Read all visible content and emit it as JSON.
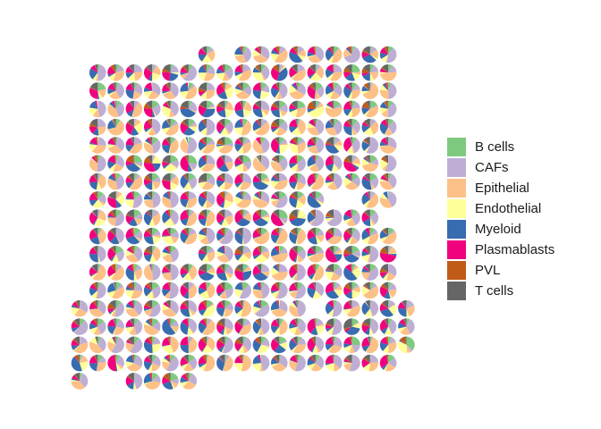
{
  "chart_data": {
    "type": "scatterpie",
    "title": "",
    "xlabel": "",
    "ylabel": "",
    "grid": false,
    "legend_position": "right",
    "categories": [
      "B cells",
      "CAFs",
      "Epithelial",
      "Endothelial",
      "Myeloid",
      "Plasmablasts",
      "PVL",
      "T cells"
    ],
    "colors": [
      "#7fc97f",
      "#beaed4",
      "#fdc086",
      "#ffff99",
      "#386cb0",
      "#f0027f",
      "#bf5b17",
      "#666666"
    ],
    "grid_columns": 19,
    "grid_rows": 19,
    "rows": [
      {
        "row": 0,
        "columns": [
          7,
          9,
          10,
          11,
          12,
          13,
          14,
          15,
          16,
          17
        ]
      },
      {
        "row": 1,
        "columns": [
          1,
          2,
          3,
          4,
          5,
          6,
          7,
          8,
          9,
          10,
          11,
          12,
          13,
          14,
          15,
          16,
          17
        ]
      },
      {
        "row": 2,
        "columns": [
          1,
          2,
          3,
          4,
          5,
          6,
          7,
          8,
          9,
          10,
          11,
          12,
          13,
          14,
          15,
          16,
          17
        ]
      },
      {
        "row": 3,
        "columns": [
          1,
          2,
          3,
          4,
          5,
          6,
          7,
          8,
          9,
          10,
          11,
          12,
          13,
          14,
          15,
          16,
          17
        ]
      },
      {
        "row": 4,
        "columns": [
          1,
          2,
          3,
          4,
          5,
          6,
          7,
          8,
          9,
          10,
          11,
          12,
          13,
          14,
          15,
          16,
          17
        ]
      },
      {
        "row": 5,
        "columns": [
          1,
          2,
          3,
          4,
          5,
          6,
          7,
          8,
          9,
          10,
          11,
          12,
          13,
          14,
          15,
          16,
          17
        ]
      },
      {
        "row": 6,
        "columns": [
          1,
          2,
          3,
          4,
          5,
          6,
          7,
          8,
          9,
          10,
          11,
          12,
          13,
          14,
          15,
          16,
          17
        ]
      },
      {
        "row": 7,
        "columns": [
          1,
          2,
          3,
          4,
          5,
          6,
          7,
          8,
          9,
          10,
          11,
          12,
          13,
          14,
          15,
          16,
          17
        ]
      },
      {
        "row": 8,
        "columns": [
          1,
          2,
          3,
          4,
          5,
          6,
          7,
          8,
          9,
          10,
          11,
          12,
          13,
          16,
          17
        ]
      },
      {
        "row": 9,
        "columns": [
          1,
          2,
          3,
          4,
          5,
          6,
          7,
          8,
          9,
          10,
          11,
          12,
          13,
          14,
          15,
          16
        ]
      },
      {
        "row": 10,
        "columns": [
          1,
          2,
          3,
          4,
          5,
          6,
          7,
          8,
          9,
          10,
          11,
          12,
          13,
          14,
          15,
          16,
          17
        ]
      },
      {
        "row": 11,
        "columns": [
          1,
          2,
          3,
          4,
          5,
          7,
          8,
          9,
          10,
          11,
          12,
          13,
          14,
          15,
          16,
          17
        ]
      },
      {
        "row": 12,
        "columns": [
          1,
          2,
          3,
          4,
          5,
          6,
          7,
          8,
          9,
          10,
          11,
          12,
          13,
          14,
          15,
          16,
          17
        ]
      },
      {
        "row": 13,
        "columns": [
          1,
          2,
          3,
          4,
          5,
          6,
          7,
          8,
          9,
          10,
          11,
          12,
          13,
          14,
          15,
          16,
          17
        ]
      },
      {
        "row": 14,
        "columns": [
          0,
          1,
          2,
          3,
          4,
          5,
          6,
          7,
          8,
          9,
          10,
          11,
          12,
          14,
          15,
          16,
          17,
          18
        ]
      },
      {
        "row": 15,
        "columns": [
          0,
          1,
          2,
          3,
          4,
          5,
          6,
          7,
          8,
          9,
          10,
          11,
          12,
          13,
          14,
          15,
          16,
          17,
          18
        ]
      },
      {
        "row": 16,
        "columns": [
          0,
          1,
          2,
          3,
          4,
          5,
          6,
          7,
          8,
          9,
          10,
          11,
          12,
          13,
          14,
          15,
          16,
          17,
          18
        ]
      },
      {
        "row": 17,
        "columns": [
          0,
          1,
          2,
          3,
          4,
          5,
          6,
          7,
          8,
          9,
          10,
          11,
          12,
          13,
          14,
          15,
          16,
          17
        ]
      },
      {
        "row": 18,
        "columns": [
          0,
          3,
          4,
          5,
          6
        ]
      }
    ]
  }
}
